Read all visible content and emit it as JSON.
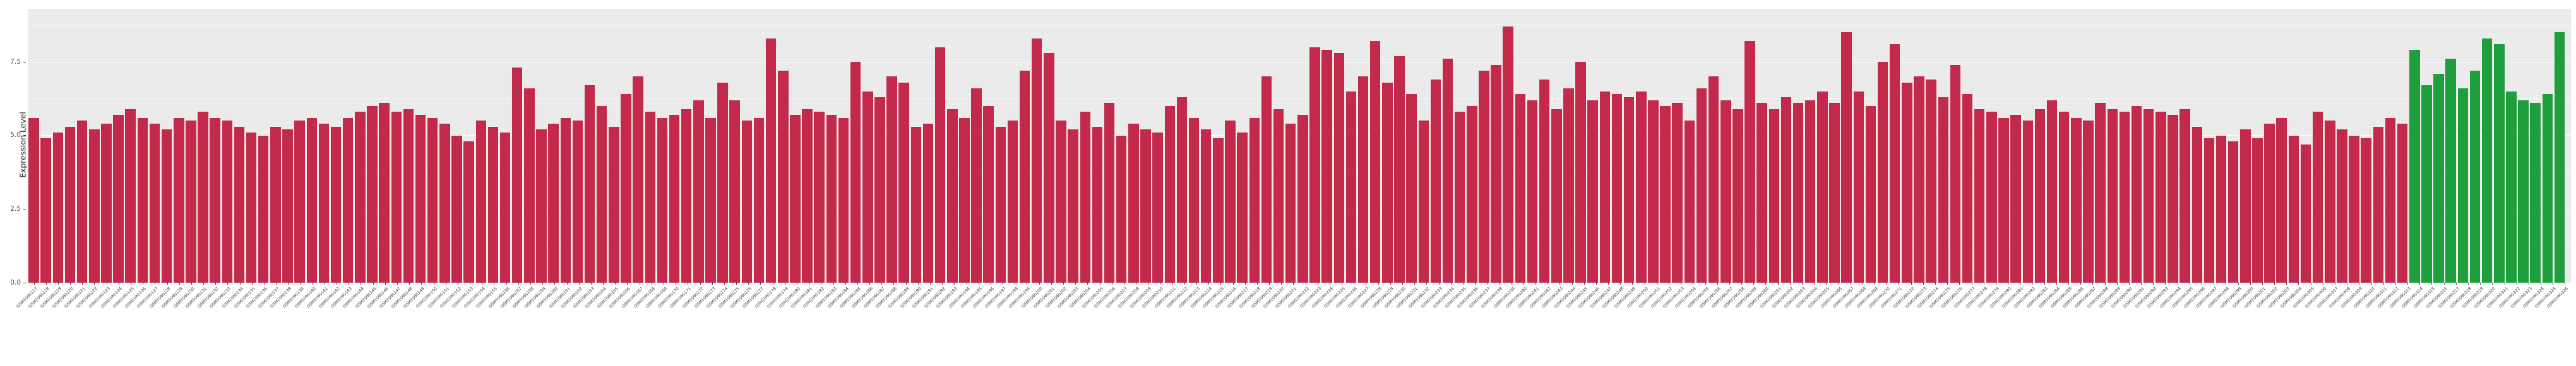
{
  "chart_data": {
    "type": "bar",
    "title": "",
    "xlabel": "",
    "ylabel": "Expression Level",
    "ylim": [
      0,
      9.3
    ],
    "yticks": [
      0,
      2.5,
      5,
      7.5
    ],
    "ytick_labels": [
      "0.0",
      "2.5",
      "5.0",
      "7.5"
    ],
    "yticks_minor": [
      1.25,
      3.75,
      6.25,
      8.75
    ],
    "grid": "on",
    "legend": "none",
    "panel_bg": "#ebebeb",
    "figure_bg": "#ffffff",
    "bar_colors": {
      "case": "#c2294b",
      "control": "#1f9e3e"
    },
    "green_from_index": 197,
    "categories": [
      "GSM1060117",
      "GSM1060118",
      "GSM1060119",
      "GSM1060120",
      "GSM1060121",
      "GSM1060122",
      "GSM1060123",
      "GSM1060124",
      "GSM1060125",
      "GSM1060126",
      "GSM1060127",
      "GSM1060128",
      "GSM1060129",
      "GSM1060130",
      "GSM1060131",
      "GSM1060132",
      "GSM1060133",
      "GSM1060134",
      "GSM1060135",
      "GSM1060136",
      "GSM1060137",
      "GSM1060138",
      "GSM1060139",
      "GSM1060140",
      "GSM1060141",
      "GSM1060142",
      "GSM1060143",
      "GSM1060144",
      "GSM1060145",
      "GSM1060146",
      "GSM1060147",
      "GSM1060148",
      "GSM1060149",
      "GSM1060150",
      "GSM1060151",
      "GSM1060152",
      "GSM1060153",
      "GSM1060154",
      "GSM1060155",
      "GSM1060156",
      "GSM1060157",
      "GSM1060158",
      "GSM1060159",
      "GSM1060160",
      "GSM1060161",
      "GSM1060162",
      "GSM1060163",
      "GSM1060164",
      "GSM1060165",
      "GSM1060166",
      "GSM1060167",
      "GSM1060168",
      "GSM1060169",
      "GSM1060170",
      "GSM1060171",
      "GSM1060172",
      "GSM1060173",
      "GSM1060174",
      "GSM1060175",
      "GSM1060176",
      "GSM1060177",
      "GSM1060178",
      "GSM1060179",
      "GSM1060180",
      "GSM1060181",
      "GSM1060182",
      "GSM1060183",
      "GSM1060184",
      "GSM1060185",
      "GSM1060186",
      "GSM1060187",
      "GSM1060188",
      "GSM1060189",
      "GSM1060190",
      "GSM1060191",
      "GSM1060192",
      "GSM1060193",
      "GSM1060194",
      "GSM1060195",
      "GSM1060196",
      "GSM1060197",
      "GSM1060198",
      "GSM1060199",
      "GSM1060200",
      "GSM1060201",
      "GSM1060202",
      "GSM1060203",
      "GSM1060204",
      "GSM1060205",
      "GSM1060206",
      "GSM1060207",
      "GSM1060208",
      "GSM1060209",
      "GSM1060210",
      "GSM1060211",
      "GSM1060212",
      "GSM1060213",
      "GSM1060214",
      "GSM1060215",
      "GSM1060216",
      "GSM1060217",
      "GSM1060218",
      "GSM1060219",
      "GSM1060220",
      "GSM1060221",
      "GSM1060222",
      "GSM1060223",
      "GSM1060224",
      "GSM1060225",
      "GSM1060226",
      "GSM1060227",
      "GSM1060228",
      "GSM1060229",
      "GSM1060230",
      "GSM1060231",
      "GSM1060232",
      "GSM1060233",
      "GSM1060234",
      "GSM1060235",
      "GSM1060236",
      "GSM1060237",
      "GSM1060238",
      "GSM1060239",
      "GSM1060240",
      "GSM1060241",
      "GSM1060242",
      "GSM1060243",
      "GSM1060244",
      "GSM1060245",
      "GSM1060246",
      "GSM1060247",
      "GSM1060248",
      "GSM1060249",
      "GSM1060250",
      "GSM1060251",
      "GSM1060252",
      "GSM1060253",
      "GSM1060254",
      "GSM1060255",
      "GSM1060256",
      "GSM1060257",
      "GSM1060258",
      "GSM1060259",
      "GSM1060260",
      "GSM1060261",
      "GSM1060262",
      "GSM1060263",
      "GSM1060264",
      "GSM1060265",
      "GSM1060266",
      "GSM1060267",
      "GSM1060268",
      "GSM1060269",
      "GSM1060270",
      "GSM1060271",
      "GSM1060272",
      "GSM1060273",
      "GSM1060274",
      "GSM1060275",
      "GSM1060276",
      "GSM1060277",
      "GSM1060278",
      "GSM1060279",
      "GSM1060280",
      "GSM1060281",
      "GSM1060282",
      "GSM1060283",
      "GSM1060284",
      "GSM1060285",
      "GSM1060286",
      "GSM1060287",
      "GSM1060288",
      "GSM1060289",
      "GSM1060290",
      "GSM1060291",
      "GSM1060292",
      "GSM1060293",
      "GSM1060294",
      "GSM1060295",
      "GSM1060296",
      "GSM1060297",
      "GSM1060298",
      "GSM1060299",
      "GSM1060300",
      "GSM1060301",
      "GSM1060302",
      "GSM1060303",
      "GSM1060304",
      "GSM1060305",
      "GSM1060306",
      "GSM1060307",
      "GSM1060308",
      "GSM1060309",
      "GSM1060310",
      "GSM1060311",
      "GSM1060312",
      "GSM1060313",
      "GSM1060314",
      "GSM1060315",
      "GSM1060316",
      "GSM1060317",
      "GSM1060318",
      "GSM1060319",
      "GSM1060320",
      "GSM1060321",
      "GSM1060322",
      "GSM1060323",
      "GSM1060324",
      "GSM1060325",
      "GSM1060326"
    ],
    "values": [
      5.6,
      4.9,
      5.1,
      5.3,
      5.5,
      5.2,
      5.4,
      5.7,
      5.9,
      5.6,
      5.4,
      5.2,
      5.6,
      5.5,
      5.8,
      5.6,
      5.5,
      5.3,
      5.1,
      5.0,
      5.3,
      5.2,
      5.5,
      5.6,
      5.4,
      5.3,
      5.6,
      5.8,
      6.0,
      6.1,
      5.8,
      5.9,
      5.7,
      5.6,
      5.4,
      5.0,
      4.8,
      5.5,
      5.3,
      5.1,
      7.3,
      6.6,
      5.2,
      5.4,
      5.6,
      5.5,
      6.7,
      6.0,
      5.3,
      6.4,
      7.0,
      5.8,
      5.6,
      5.7,
      5.9,
      6.2,
      5.6,
      6.8,
      6.2,
      5.5,
      5.6,
      8.3,
      7.2,
      5.7,
      5.9,
      5.8,
      5.7,
      5.6,
      7.5,
      6.5,
      6.3,
      7.0,
      6.8,
      5.3,
      5.4,
      8.0,
      5.9,
      5.6,
      6.6,
      6.0,
      5.3,
      5.5,
      7.2,
      8.3,
      7.8,
      5.5,
      5.2,
      5.8,
      5.3,
      6.1,
      5.0,
      5.4,
      5.2,
      5.1,
      6.0,
      6.3,
      5.6,
      5.2,
      4.9,
      5.5,
      5.1,
      5.6,
      7.0,
      5.9,
      5.4,
      5.7,
      8.0,
      7.9,
      7.8,
      6.5,
      7.0,
      8.2,
      6.8,
      7.7,
      6.4,
      5.5,
      6.9,
      7.6,
      5.8,
      6.0,
      7.2,
      7.4,
      8.7,
      6.4,
      6.2,
      6.9,
      5.9,
      6.6,
      7.5,
      6.2,
      6.5,
      6.4,
      6.3,
      6.5,
      6.2,
      6.0,
      6.1,
      5.5,
      6.6,
      7.0,
      6.2,
      5.9,
      8.2,
      6.1,
      5.9,
      6.3,
      6.1,
      6.2,
      6.5,
      6.1,
      8.5,
      6.5,
      6.0,
      7.5,
      8.1,
      6.8,
      7.0,
      6.9,
      6.3,
      7.4,
      6.4,
      5.9,
      5.8,
      5.6,
      5.7,
      5.5,
      5.9,
      6.2,
      5.8,
      5.6,
      5.5,
      6.1,
      5.9,
      5.8,
      6.0,
      5.9,
      5.8,
      5.7,
      5.9,
      5.3,
      4.9,
      5.0,
      4.8,
      5.2,
      4.9,
      5.4,
      5.6,
      5.0,
      4.7,
      5.8,
      5.5,
      5.2,
      5.0,
      4.9,
      5.3,
      5.6,
      5.4,
      7.9,
      6.7,
      7.1,
      7.6,
      6.6,
      7.2,
      8.3,
      8.1,
      6.5,
      6.2,
      6.1,
      6.4,
      8.5
    ]
  }
}
